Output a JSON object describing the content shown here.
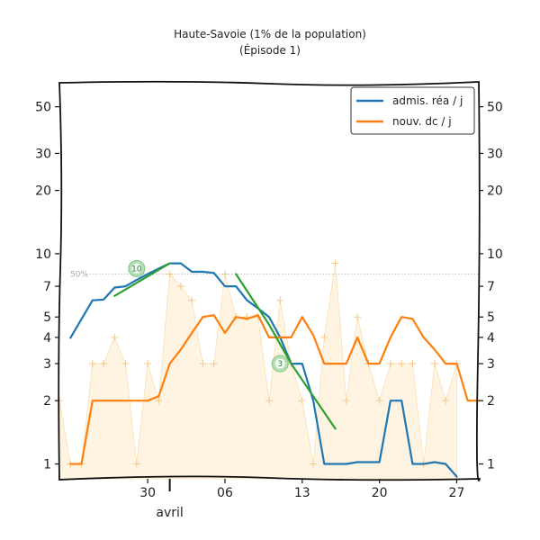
{
  "chart_data": {
    "type": "line",
    "title": "Haute-Savoie (1% de la population)",
    "subtitle": "(Épisode 1)",
    "xlabel": "",
    "ylabel": "",
    "x_axis": {
      "kind": "date",
      "range": [
        "2020-03-22",
        "2020-04-27"
      ],
      "ticks": [
        {
          "date": "2020-03-30",
          "label": "30"
        },
        {
          "date": "2020-04-06",
          "label": "06"
        },
        {
          "date": "2020-04-13",
          "label": "13"
        },
        {
          "date": "2020-04-20",
          "label": "20"
        },
        {
          "date": "2020-04-27",
          "label": "27"
        }
      ],
      "month_label": {
        "date": "2020-04-01",
        "label": "avril"
      }
    },
    "y_axis": {
      "scale": "log",
      "range": [
        0.85,
        65
      ],
      "ticks": [
        {
          "value": 1,
          "label": "1"
        },
        {
          "value": 2,
          "label": "2"
        },
        {
          "value": 3,
          "label": "3"
        },
        {
          "value": 4,
          "label": "4"
        },
        {
          "value": 5,
          "label": "5"
        },
        {
          "value": 7,
          "label": "7"
        },
        {
          "value": 10,
          "label": "10"
        },
        {
          "value": 20,
          "label": "20"
        },
        {
          "value": 30,
          "label": "30"
        },
        {
          "value": 50,
          "label": "50"
        }
      ],
      "both_sides": true
    },
    "grid": false,
    "legend": {
      "placement": "top-right"
    },
    "reference_line": {
      "value": 8.0,
      "label": "50%",
      "color": "#bbbbbb"
    },
    "series": [
      {
        "name": "admis. réa / j",
        "color": "#1f77b4",
        "points": [
          [
            "2020-03-23",
            3.98
          ],
          [
            "2020-03-25",
            6.0
          ],
          [
            "2020-03-26",
            6.05
          ],
          [
            "2020-03-27",
            6.9
          ],
          [
            "2020-03-28",
            7.0
          ],
          [
            "2020-03-29",
            7.5
          ],
          [
            "2020-03-30",
            8.0
          ],
          [
            "2020-03-31",
            8.5
          ],
          [
            "2020-04-01",
            9.0
          ],
          [
            "2020-04-02",
            9.0
          ],
          [
            "2020-04-03",
            8.2
          ],
          [
            "2020-04-04",
            8.2
          ],
          [
            "2020-04-05",
            8.1
          ],
          [
            "2020-04-06",
            7.0
          ],
          [
            "2020-04-07",
            7.0
          ],
          [
            "2020-04-08",
            6.0
          ],
          [
            "2020-04-09",
            5.5
          ],
          [
            "2020-04-10",
            5.0
          ],
          [
            "2020-04-11",
            4.0
          ],
          [
            "2020-04-12",
            3.0
          ],
          [
            "2020-04-13",
            3.0
          ],
          [
            "2020-04-14",
            2.0
          ],
          [
            "2020-04-15",
            1.0
          ],
          [
            "2020-04-16",
            1.0
          ],
          [
            "2020-04-17",
            1.0
          ],
          [
            "2020-04-18",
            1.02
          ],
          [
            "2020-04-19",
            1.02
          ],
          [
            "2020-04-20",
            1.02
          ],
          [
            "2020-04-21",
            2.0
          ],
          [
            "2020-04-22",
            2.0
          ],
          [
            "2020-04-23",
            1.0
          ],
          [
            "2020-04-24",
            1.0
          ],
          [
            "2020-04-25",
            1.02
          ],
          [
            "2020-04-26",
            1.0
          ],
          [
            "2020-04-27",
            0.87
          ]
        ]
      },
      {
        "name": "nouv. dc / j",
        "color": "#ff7f0e",
        "points": [
          [
            "2020-03-23",
            1.0
          ],
          [
            "2020-03-24",
            1.0
          ],
          [
            "2020-03-25",
            2.0
          ],
          [
            "2020-03-26",
            2.0
          ],
          [
            "2020-03-27",
            2.0
          ],
          [
            "2020-03-28",
            2.0
          ],
          [
            "2020-03-29",
            2.0
          ],
          [
            "2020-03-30",
            2.0
          ],
          [
            "2020-03-31",
            2.1
          ],
          [
            "2020-04-01",
            3.0
          ],
          [
            "2020-04-02",
            3.5
          ],
          [
            "2020-04-03",
            4.2
          ],
          [
            "2020-04-04",
            5.0
          ],
          [
            "2020-04-05",
            5.1
          ],
          [
            "2020-04-06",
            4.2
          ],
          [
            "2020-04-07",
            5.0
          ],
          [
            "2020-04-08",
            4.9
          ],
          [
            "2020-04-09",
            5.1
          ],
          [
            "2020-04-10",
            4.0
          ],
          [
            "2020-04-11",
            4.0
          ],
          [
            "2020-04-12",
            4.0
          ],
          [
            "2020-04-13",
            5.0
          ],
          [
            "2020-04-14",
            4.1
          ],
          [
            "2020-04-15",
            3.0
          ],
          [
            "2020-04-16",
            3.0
          ],
          [
            "2020-04-17",
            3.0
          ],
          [
            "2020-04-18",
            4.0
          ],
          [
            "2020-04-19",
            3.0
          ],
          [
            "2020-04-20",
            3.0
          ],
          [
            "2020-04-21",
            4.0
          ],
          [
            "2020-04-22",
            5.0
          ],
          [
            "2020-04-23",
            4.9
          ],
          [
            "2020-04-24",
            4.0
          ],
          [
            "2020-04-25",
            3.5
          ],
          [
            "2020-04-26",
            3.0
          ],
          [
            "2020-04-27",
            3.0
          ],
          [
            "2020-04-28",
            2.0
          ],
          [
            "2020-04-29",
            2.0
          ]
        ]
      }
    ],
    "daily_values": {
      "color": "#fdebc9",
      "marker": "+",
      "points": [
        [
          "2020-03-22",
          2.0
        ],
        [
          "2020-03-23",
          1.0
        ],
        [
          "2020-03-24",
          1.0
        ],
        [
          "2020-03-25",
          3.0
        ],
        [
          "2020-03-26",
          3.0
        ],
        [
          "2020-03-27",
          4.0
        ],
        [
          "2020-03-28",
          3.0
        ],
        [
          "2020-03-29",
          1.0
        ],
        [
          "2020-03-30",
          3.0
        ],
        [
          "2020-03-31",
          2.0
        ],
        [
          "2020-04-01",
          8.0
        ],
        [
          "2020-04-02",
          7.0
        ],
        [
          "2020-04-03",
          6.0
        ],
        [
          "2020-04-04",
          3.0
        ],
        [
          "2020-04-05",
          3.0
        ],
        [
          "2020-04-06",
          8.0
        ],
        [
          "2020-04-07",
          5.0
        ],
        [
          "2020-04-08",
          5.0
        ],
        [
          "2020-04-09",
          5.0
        ],
        [
          "2020-04-10",
          2.0
        ],
        [
          "2020-04-11",
          6.0
        ],
        [
          "2020-04-12",
          3.0
        ],
        [
          "2020-04-13",
          2.0
        ],
        [
          "2020-04-14",
          1.0
        ],
        [
          "2020-04-15",
          4.0
        ],
        [
          "2020-04-16",
          9.0
        ],
        [
          "2020-04-17",
          2.0
        ],
        [
          "2020-04-18",
          5.0
        ],
        [
          "2020-04-19",
          3.0
        ],
        [
          "2020-04-20",
          2.0
        ],
        [
          "2020-04-21",
          3.0
        ],
        [
          "2020-04-22",
          3.0
        ],
        [
          "2020-04-23",
          3.0
        ],
        [
          "2020-04-24",
          1.0
        ],
        [
          "2020-04-25",
          3.0
        ],
        [
          "2020-04-26",
          2.0
        ],
        [
          "2020-04-27",
          3.0
        ]
      ]
    },
    "fits": [
      {
        "color": "#2ca02c",
        "label": "10",
        "label_point": [
          "2020-03-29",
          8.5
        ],
        "points": [
          [
            "2020-03-27",
            6.3
          ],
          [
            "2020-04-01",
            9.0
          ]
        ]
      },
      {
        "color": "#2ca02c",
        "label": "3",
        "label_point": [
          "2020-04-11",
          3.0
        ],
        "points": [
          [
            "2020-04-07",
            8.0
          ],
          [
            "2020-04-10",
            4.6
          ],
          [
            "2020-04-12",
            3.0
          ],
          [
            "2020-04-16",
            1.47
          ]
        ]
      }
    ]
  }
}
